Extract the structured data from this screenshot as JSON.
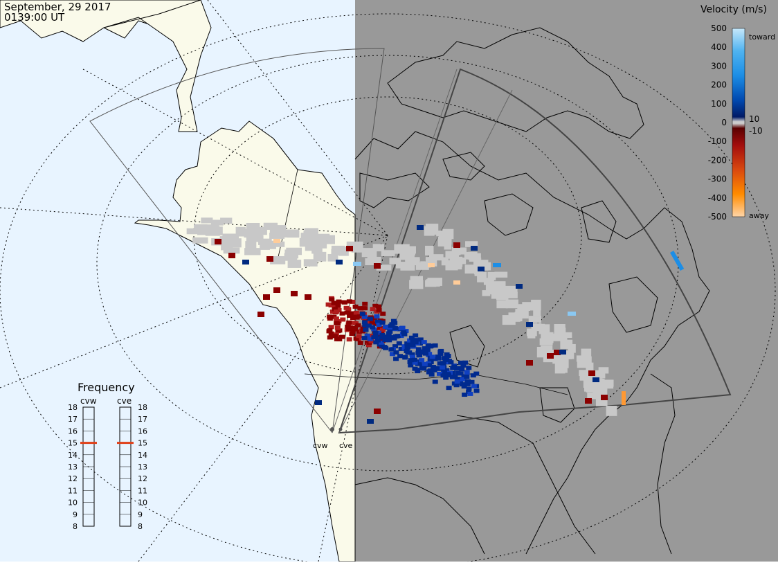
{
  "header": {
    "date": "September, 29 2017",
    "time": "0139:00 UT"
  },
  "velocity_legend": {
    "title": "Velocity (m/s)",
    "ticks": [
      "500",
      "400",
      "300",
      "200",
      "100",
      "0",
      "-100",
      "-200",
      "-300",
      "-400",
      "-500"
    ],
    "inner_labels": [
      "10",
      "-10"
    ],
    "end_labels": {
      "top": "toward",
      "bottom": "away"
    },
    "colors": {
      "toward_light": "#aad8f5",
      "toward_mid": "#1c8ee6",
      "toward_dark": "#002a80",
      "away_dark": "#8b0000",
      "away_mid": "#d9480f",
      "away_light": "#ffcc99",
      "ground_scatter": "#c8c8c8"
    }
  },
  "frequency_panel": {
    "title": "Frequency",
    "radars": [
      "cvw",
      "cve"
    ],
    "scale": [
      "18",
      "17",
      "16",
      "15",
      "14",
      "13",
      "12",
      "11",
      "10",
      "9",
      "8"
    ],
    "cvw_frequency_mhz": 15,
    "cve_frequency_mhz": 15,
    "marker_color": "#e0401a"
  },
  "map": {
    "radar_labels": [
      "cvw",
      "cve"
    ],
    "night_color": "#999999",
    "ocean_color": "#e8f4ff",
    "land_color": "#fafaea"
  }
}
